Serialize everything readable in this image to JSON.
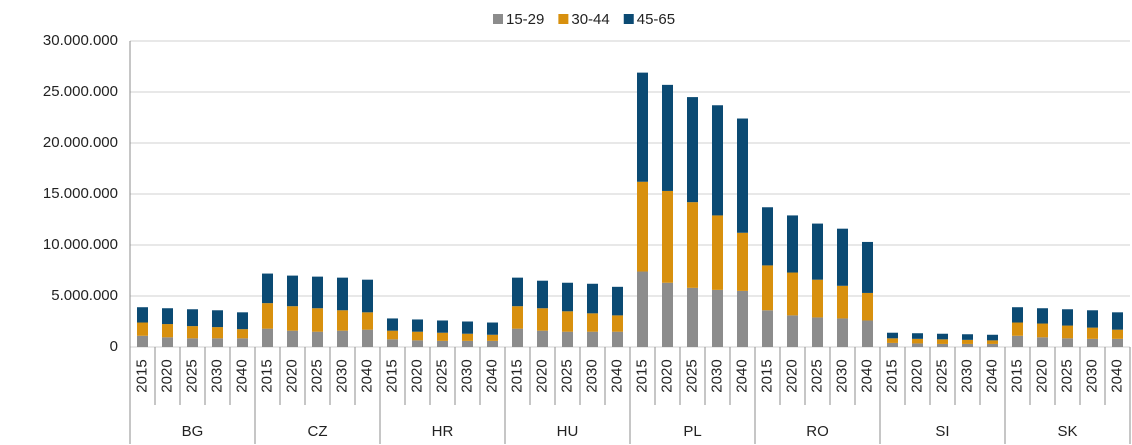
{
  "chart_data": {
    "type": "stacked_bar",
    "categories": [
      "2015",
      "2020",
      "2025",
      "2030",
      "2040",
      "2015",
      "2020",
      "2025",
      "2030",
      "2040",
      "2015",
      "2020",
      "2025",
      "2030",
      "2040",
      "2015",
      "2020",
      "2025",
      "2030",
      "2040",
      "2015",
      "2020",
      "2025",
      "2030",
      "2040",
      "2015",
      "2020",
      "2025",
      "2030",
      "2040",
      "2015",
      "2020",
      "2025",
      "2030",
      "2040",
      "2015",
      "2020",
      "2025",
      "2030",
      "2040"
    ],
    "groups": [
      "BG",
      "CZ",
      "HR",
      "HU",
      "PL",
      "RO",
      "SI",
      "SK"
    ],
    "series": [
      {
        "name": "15-29",
        "color": "#8c8c8c",
        "values": [
          1100000,
          950000,
          850000,
          850000,
          850000,
          1800000,
          1600000,
          1500000,
          1600000,
          1700000,
          750000,
          650000,
          600000,
          600000,
          600000,
          1800000,
          1600000,
          1500000,
          1500000,
          1500000,
          7400000,
          6300000,
          5800000,
          5600000,
          5500000,
          3600000,
          3100000,
          2900000,
          2800000,
          2600000,
          400000,
          350000,
          300000,
          300000,
          300000,
          1100000,
          950000,
          850000,
          800000,
          800000
        ]
      },
      {
        "name": "30-44",
        "color": "#d8900e",
        "values": [
          1300000,
          1300000,
          1200000,
          1100000,
          900000,
          2500000,
          2400000,
          2300000,
          2000000,
          1700000,
          850000,
          850000,
          800000,
          700000,
          600000,
          2200000,
          2200000,
          2000000,
          1800000,
          1600000,
          8800000,
          9000000,
          8400000,
          7300000,
          5700000,
          4400000,
          4200000,
          3700000,
          3200000,
          2700000,
          450000,
          450000,
          450000,
          400000,
          350000,
          1300000,
          1350000,
          1250000,
          1100000,
          900000
        ]
      },
      {
        "name": "45-65",
        "color": "#0b4a73",
        "values": [
          1500000,
          1550000,
          1650000,
          1650000,
          1650000,
          2900000,
          3000000,
          3100000,
          3200000,
          3200000,
          1200000,
          1200000,
          1200000,
          1200000,
          1200000,
          2800000,
          2700000,
          2800000,
          2900000,
          2800000,
          10700000,
          10400000,
          10300000,
          10800000,
          11200000,
          5700000,
          5600000,
          5500000,
          5600000,
          5000000,
          550000,
          550000,
          550000,
          550000,
          550000,
          1500000,
          1500000,
          1600000,
          1700000,
          1700000
        ]
      }
    ],
    "ylim": [
      0,
      30000000
    ],
    "yticks": [
      0,
      {
        "value": 5000000,
        "label": "5.000.000"
      },
      {
        "value": 10000000,
        "label": "10.000.000"
      },
      {
        "value": 15000000,
        "label": "15.000.000"
      },
      {
        "value": 20000000,
        "label": "20.000.000"
      },
      {
        "value": 25000000,
        "label": "25.000.000"
      },
      {
        "value": 30000000,
        "label": "30.000.000"
      }
    ],
    "grid": true,
    "legend": "top"
  }
}
